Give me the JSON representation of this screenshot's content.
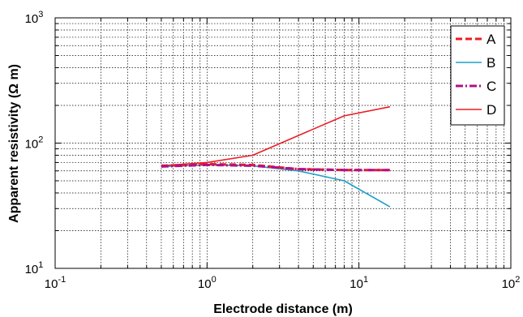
{
  "chart_data": {
    "type": "line",
    "xlabel": "Electrode distance (m)",
    "ylabel": "Apparent resistivity (Ω m)",
    "x_scale": "log",
    "y_scale": "log",
    "xlim": [
      0.1,
      100
    ],
    "ylim": [
      10,
      1000
    ],
    "grid": true,
    "legend_position": "top-right",
    "x_ticks": [
      {
        "base": "10",
        "exp": "-1"
      },
      {
        "base": "10",
        "exp": "0"
      },
      {
        "base": "10",
        "exp": "1"
      },
      {
        "base": "10",
        "exp": "2"
      }
    ],
    "y_ticks": [
      {
        "base": "10",
        "exp": "1"
      },
      {
        "base": "10",
        "exp": "2"
      },
      {
        "base": "10",
        "exp": "3"
      }
    ],
    "series": [
      {
        "name": "A",
        "color": "#ee1c25",
        "dash": "8,4",
        "width": 3,
        "x": [
          0.5,
          1,
          2,
          4,
          8,
          16
        ],
        "y": [
          66,
          68,
          67,
          62,
          61,
          61
        ]
      },
      {
        "name": "B",
        "color": "#1ea0c8",
        "dash": "",
        "width": 1.6,
        "x": [
          0.5,
          1,
          2,
          4,
          8,
          16
        ],
        "y": [
          65,
          67,
          66,
          60,
          50,
          31
        ]
      },
      {
        "name": "C",
        "color": "#b0108a",
        "dash": "9,3,2,3",
        "width": 3,
        "x": [
          0.5,
          1,
          2,
          4,
          8,
          16
        ],
        "y": [
          65,
          67,
          66,
          62,
          61,
          61
        ]
      },
      {
        "name": "D",
        "color": "#ee1c25",
        "dash": "",
        "width": 1.6,
        "x": [
          0.5,
          1,
          2,
          4,
          8,
          16
        ],
        "y": [
          66,
          70,
          80,
          115,
          165,
          195
        ]
      }
    ]
  }
}
